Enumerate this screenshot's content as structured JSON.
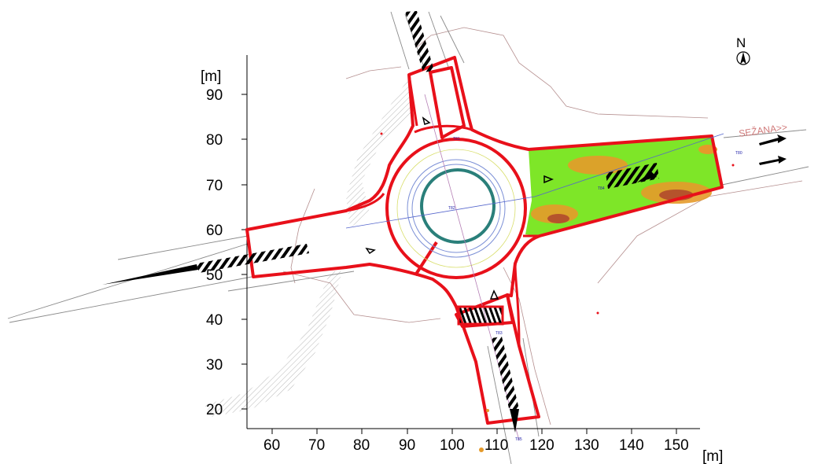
{
  "plan": {
    "x_unit": "[m]",
    "y_unit": "[m]",
    "x_ticks": [
      "60",
      "70",
      "80",
      "90",
      "100",
      "110",
      "120",
      "130",
      "140",
      "150"
    ],
    "y_ticks": [
      "90",
      "80",
      "70",
      "60",
      "50",
      "40",
      "30",
      "20"
    ],
    "north_label": "N",
    "direction_label": "SEŽANA>>",
    "colors": {
      "road_outline": "#e8101a",
      "island": "#2a7f7a",
      "green_area": "#7ee628",
      "orange_area": "#e59a2a",
      "brown_area": "#b5532c",
      "thin_lines": "#9a7070"
    },
    "small_labels": [
      "T81",
      "T82",
      "T83",
      "T80",
      "T84",
      "T85"
    ]
  }
}
